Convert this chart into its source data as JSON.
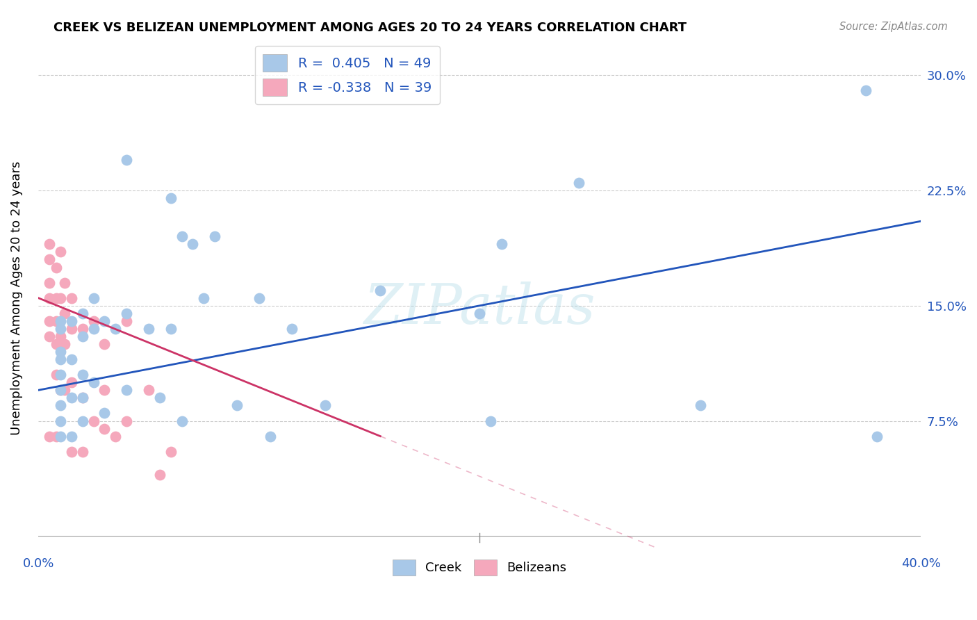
{
  "title": "CREEK VS BELIZEAN UNEMPLOYMENT AMONG AGES 20 TO 24 YEARS CORRELATION CHART",
  "source": "Source: ZipAtlas.com",
  "ylabel": "Unemployment Among Ages 20 to 24 years",
  "xlim": [
    0.0,
    0.4
  ],
  "ylim": [
    -0.01,
    0.32
  ],
  "yticks": [
    0.0,
    0.075,
    0.15,
    0.225,
    0.3
  ],
  "yticklabels": [
    "",
    "7.5%",
    "15.0%",
    "22.5%",
    "30.0%"
  ],
  "creek_color": "#a8c8e8",
  "belizean_color": "#f5a8bc",
  "creek_line_color": "#2255bb",
  "belizean_line_color": "#cc3366",
  "creek_R": 0.405,
  "creek_N": 49,
  "belizean_R": -0.338,
  "belizean_N": 39,
  "watermark": "ZIPatlas",
  "creek_x": [
    0.04,
    0.06,
    0.065,
    0.01,
    0.01,
    0.01,
    0.01,
    0.01,
    0.01,
    0.01,
    0.01,
    0.01,
    0.015,
    0.015,
    0.015,
    0.015,
    0.02,
    0.02,
    0.02,
    0.02,
    0.02,
    0.025,
    0.025,
    0.025,
    0.03,
    0.03,
    0.035,
    0.04,
    0.04,
    0.05,
    0.055,
    0.06,
    0.065,
    0.07,
    0.075,
    0.08,
    0.09,
    0.1,
    0.105,
    0.115,
    0.13,
    0.155,
    0.2,
    0.205,
    0.21,
    0.245,
    0.3,
    0.375,
    0.38
  ],
  "creek_y": [
    0.245,
    0.22,
    0.195,
    0.14,
    0.135,
    0.12,
    0.115,
    0.105,
    0.095,
    0.085,
    0.075,
    0.065,
    0.14,
    0.115,
    0.09,
    0.065,
    0.145,
    0.13,
    0.105,
    0.09,
    0.075,
    0.155,
    0.135,
    0.1,
    0.14,
    0.08,
    0.135,
    0.145,
    0.095,
    0.135,
    0.09,
    0.135,
    0.075,
    0.19,
    0.155,
    0.195,
    0.085,
    0.155,
    0.065,
    0.135,
    0.085,
    0.16,
    0.145,
    0.075,
    0.19,
    0.23,
    0.085,
    0.29,
    0.065
  ],
  "belizean_x": [
    0.005,
    0.005,
    0.005,
    0.005,
    0.005,
    0.005,
    0.005,
    0.008,
    0.008,
    0.008,
    0.008,
    0.008,
    0.008,
    0.01,
    0.01,
    0.01,
    0.01,
    0.012,
    0.012,
    0.012,
    0.012,
    0.015,
    0.015,
    0.015,
    0.015,
    0.02,
    0.02,
    0.02,
    0.025,
    0.025,
    0.03,
    0.03,
    0.03,
    0.035,
    0.04,
    0.04,
    0.05,
    0.055,
    0.06
  ],
  "belizean_y": [
    0.19,
    0.18,
    0.165,
    0.155,
    0.14,
    0.13,
    0.065,
    0.175,
    0.155,
    0.14,
    0.125,
    0.105,
    0.065,
    0.185,
    0.155,
    0.13,
    0.095,
    0.165,
    0.145,
    0.125,
    0.095,
    0.155,
    0.135,
    0.1,
    0.055,
    0.135,
    0.09,
    0.055,
    0.14,
    0.075,
    0.125,
    0.095,
    0.07,
    0.065,
    0.14,
    0.075,
    0.095,
    0.04,
    0.055
  ],
  "creek_line_x0": 0.0,
  "creek_line_y0": 0.095,
  "creek_line_x1": 0.4,
  "creek_line_y1": 0.205,
  "belizean_line_x0": 0.0,
  "belizean_line_y0": 0.155,
  "belizean_line_x1": 0.155,
  "belizean_line_y1": 0.065,
  "background_color": "#ffffff",
  "grid_color": "#cccccc"
}
